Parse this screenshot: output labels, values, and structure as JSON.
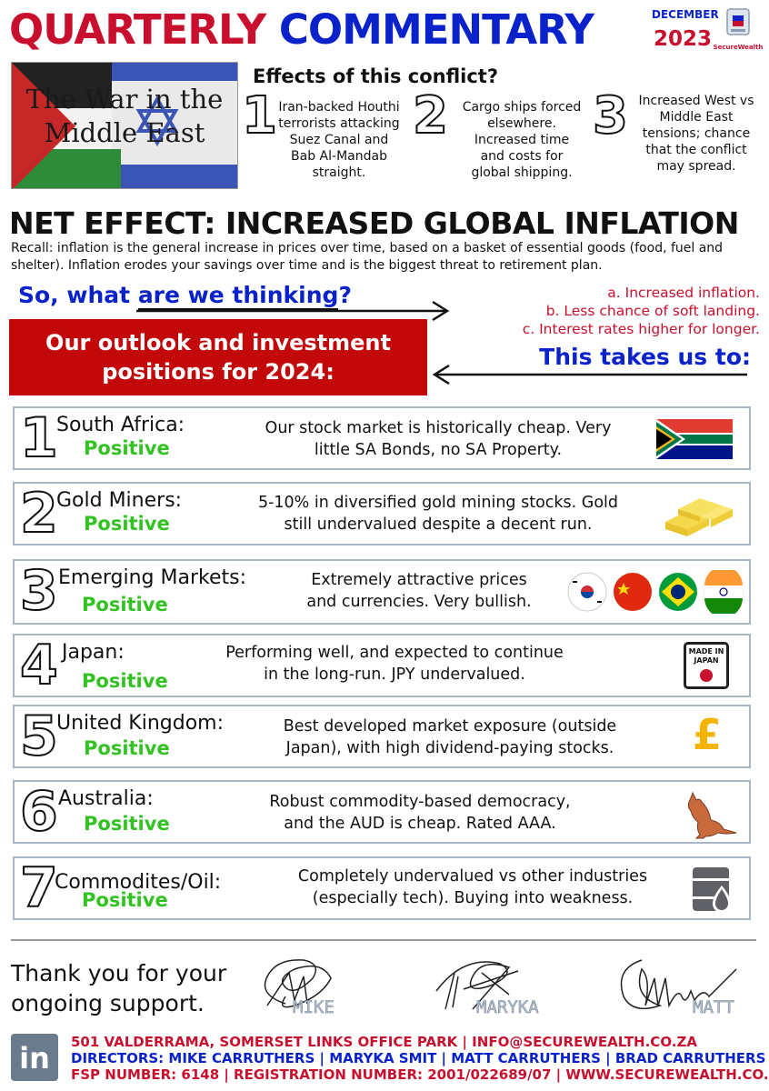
{
  "header": {
    "title_part1": "QUARTERLY",
    "title_part2": "COMMENTARY",
    "month": "DECEMBER",
    "year": "2023",
    "logo_text": "SecureWealth"
  },
  "war_image": {
    "caption_line1": "The War in the",
    "caption_line2": "Middle East"
  },
  "effects": {
    "title": "Effects of this conflict?",
    "items": [
      {
        "number": "1",
        "text_lines": [
          "Iran-backed Houthi",
          "terrorists attacking",
          "Suez Canal and",
          "Bab Al-Mandab",
          "straight."
        ]
      },
      {
        "number": "2",
        "text_lines": [
          "Cargo ships forced",
          "elsewhere.",
          "Increased time",
          "and costs for",
          "global shipping."
        ]
      },
      {
        "number": "3",
        "text_lines": [
          "Increased West vs",
          "Middle East",
          "tensions; chance",
          "that the conflict",
          "may spread."
        ]
      }
    ]
  },
  "net_effect": {
    "headline": "NET EFFECT:  INCREASED GLOBAL INFLATION",
    "recall": "Recall: inflation is the general increase in prices over time, based on a basket of essential goods (food, fuel and shelter). Inflation erodes your savings over time and is the biggest threat to retirement plan."
  },
  "thinking": {
    "question_part1": "So, what ",
    "question_part2": "are we thinking",
    "question_part3": "?",
    "points": [
      "a. Increased inflation.",
      "b. Less chance of soft landing.",
      "c. Interest rates higher for longer."
    ],
    "takes_us_to": "This takes us to:",
    "outlook_line1": "Our outlook and investment",
    "outlook_line2": "positions for 2024:"
  },
  "positions": [
    {
      "number": "1",
      "name": "South Africa:",
      "stance": "Positive",
      "desc_lines": [
        "Our stock market is historically cheap. Very",
        "little SA Bonds, no SA Property."
      ],
      "icon": "south-africa-flag-icon"
    },
    {
      "number": "2",
      "name": "Gold Miners:",
      "stance": "Positive",
      "desc_lines": [
        "5-10% in diversified gold mining stocks. Gold",
        "still undervalued despite a decent run."
      ],
      "icon": "gold-bars-icon"
    },
    {
      "number": "3",
      "name": "Emerging Markets:",
      "stance": "Positive",
      "desc_lines": [
        "Extremely attractive prices",
        "and currencies. Very bullish."
      ],
      "icon": "emerging-market-flags-icon"
    },
    {
      "number": "4",
      "name": "Japan:",
      "stance": "Positive",
      "desc_lines": [
        "Performing well, and expected to continue",
        "in the long-run. JPY undervalued."
      ],
      "icon": "made-in-japan-icon",
      "icon_text_1": "MADE IN",
      "icon_text_2": "JAPAN"
    },
    {
      "number": "5",
      "name": "United Kingdom:",
      "stance": "Positive",
      "desc_lines": [
        "Best developed market exposure (outside",
        "Japan), with high dividend-paying stocks."
      ],
      "icon": "pound-sign-icon",
      "icon_text_1": "£"
    },
    {
      "number": "6",
      "name": "Australia:",
      "stance": "Positive",
      "desc_lines": [
        "Robust commodity-based democracy,",
        "and the AUD is cheap. Rated AAA."
      ],
      "icon": "kangaroo-icon"
    },
    {
      "number": "7",
      "name": "Commodites/Oil:",
      "stance": "Positive",
      "desc_lines": [
        "Completely undervalued vs other industries",
        "(especially tech). Buying into weakness."
      ],
      "icon": "oil-barrel-icon"
    }
  ],
  "footer": {
    "thanks_line1": "Thank you for your",
    "thanks_line2": "ongoing support.",
    "signatures": [
      "MIKE",
      "MARYKA",
      "MATT"
    ],
    "linkedin": "in",
    "address_line": "501 VALDERRAMA, SOMERSET LINKS OFFICE PARK | INFO@SECUREWEALTH.CO.ZA",
    "directors_line": "DIRECTORS: MIKE CARRUTHERS | MARYKA SMIT | MATT CARRUTHERS | BRAD CARRUTHERS",
    "fsp_line": "FSP NUMBER: 6148 | REGISTRATION NUMBER: 2001/022689/07 | WWW.SECUREWEALTH.CO.ZA"
  },
  "colors": {
    "brand_red": "#c8102e",
    "brand_blue": "#0a22c9",
    "positive_green": "#32c221",
    "outlook_bg": "#c3080a",
    "row_border": "#a9b6c6"
  }
}
